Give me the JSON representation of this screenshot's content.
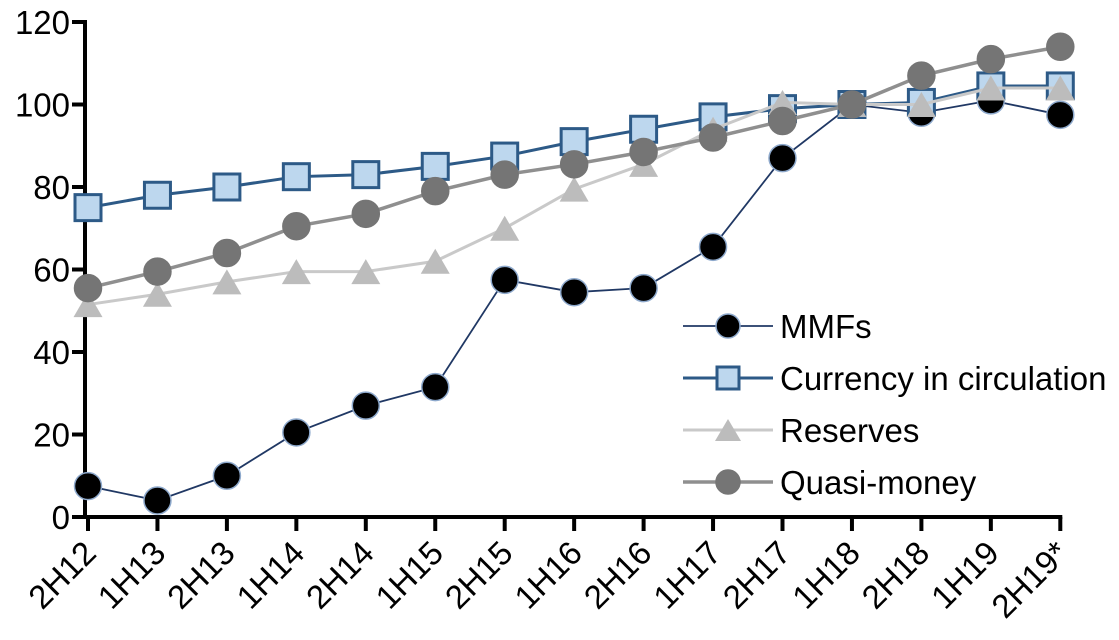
{
  "chart_data": {
    "type": "line",
    "title": "",
    "xlabel": "",
    "ylabel": "",
    "categories": [
      "2H12",
      "1H13",
      "2H13",
      "1H14",
      "2H14",
      "1H15",
      "2H15",
      "1H16",
      "2H16",
      "1H17",
      "2H17",
      "1H18",
      "2H18",
      "1H19",
      "2H19*"
    ],
    "series": [
      {
        "name": "MMFs",
        "marker": "circle",
        "marker_color": "#000000",
        "marker_stroke": "#8ea9cc",
        "line_color": "#203864",
        "line_width": 1.8,
        "values": [
          7.5,
          4,
          10,
          20.5,
          27,
          31.5,
          57.5,
          54.5,
          55.5,
          65.5,
          87,
          100,
          98,
          101,
          97.5
        ]
      },
      {
        "name": "Currency in circulation",
        "marker": "square",
        "marker_color": "#bdd7ee",
        "marker_stroke": "#2d5a87",
        "line_color": "#2d5a87",
        "line_width": 3,
        "values": [
          75,
          78,
          80,
          82.5,
          83,
          85,
          87.5,
          91,
          94,
          97,
          99,
          100,
          100.5,
          104.5,
          104.5
        ]
      },
      {
        "name": "Reserves",
        "marker": "triangle",
        "marker_color": "#bcbcbc",
        "marker_stroke": "#bcbcbc",
        "line_color": "#c9c9c9",
        "line_width": 3,
        "values": [
          51.5,
          54,
          57,
          59.5,
          59.5,
          62,
          70,
          79.5,
          85.5,
          94,
          100.5,
          100,
          100,
          104,
          104
        ]
      },
      {
        "name": "Quasi-money",
        "marker": "circle",
        "marker_color": "#757575",
        "marker_stroke": "#757575",
        "line_color": "#8f8f8f",
        "line_width": 3.5,
        "values": [
          55.5,
          59.5,
          64,
          70.5,
          73.5,
          79,
          83,
          85.5,
          88.5,
          92,
          96,
          100,
          107,
          111,
          114
        ]
      }
    ],
    "ylim": [
      0,
      120
    ],
    "yticks": [
      0,
      20,
      40,
      60,
      80,
      100,
      120
    ],
    "grid": false,
    "legend_position": "inside-right",
    "legend_labels": [
      "MMFs",
      "Currency in circulation",
      "Reserves",
      "Quasi-money"
    ],
    "axis_color": "#000000",
    "background_color": "#ffffff"
  }
}
